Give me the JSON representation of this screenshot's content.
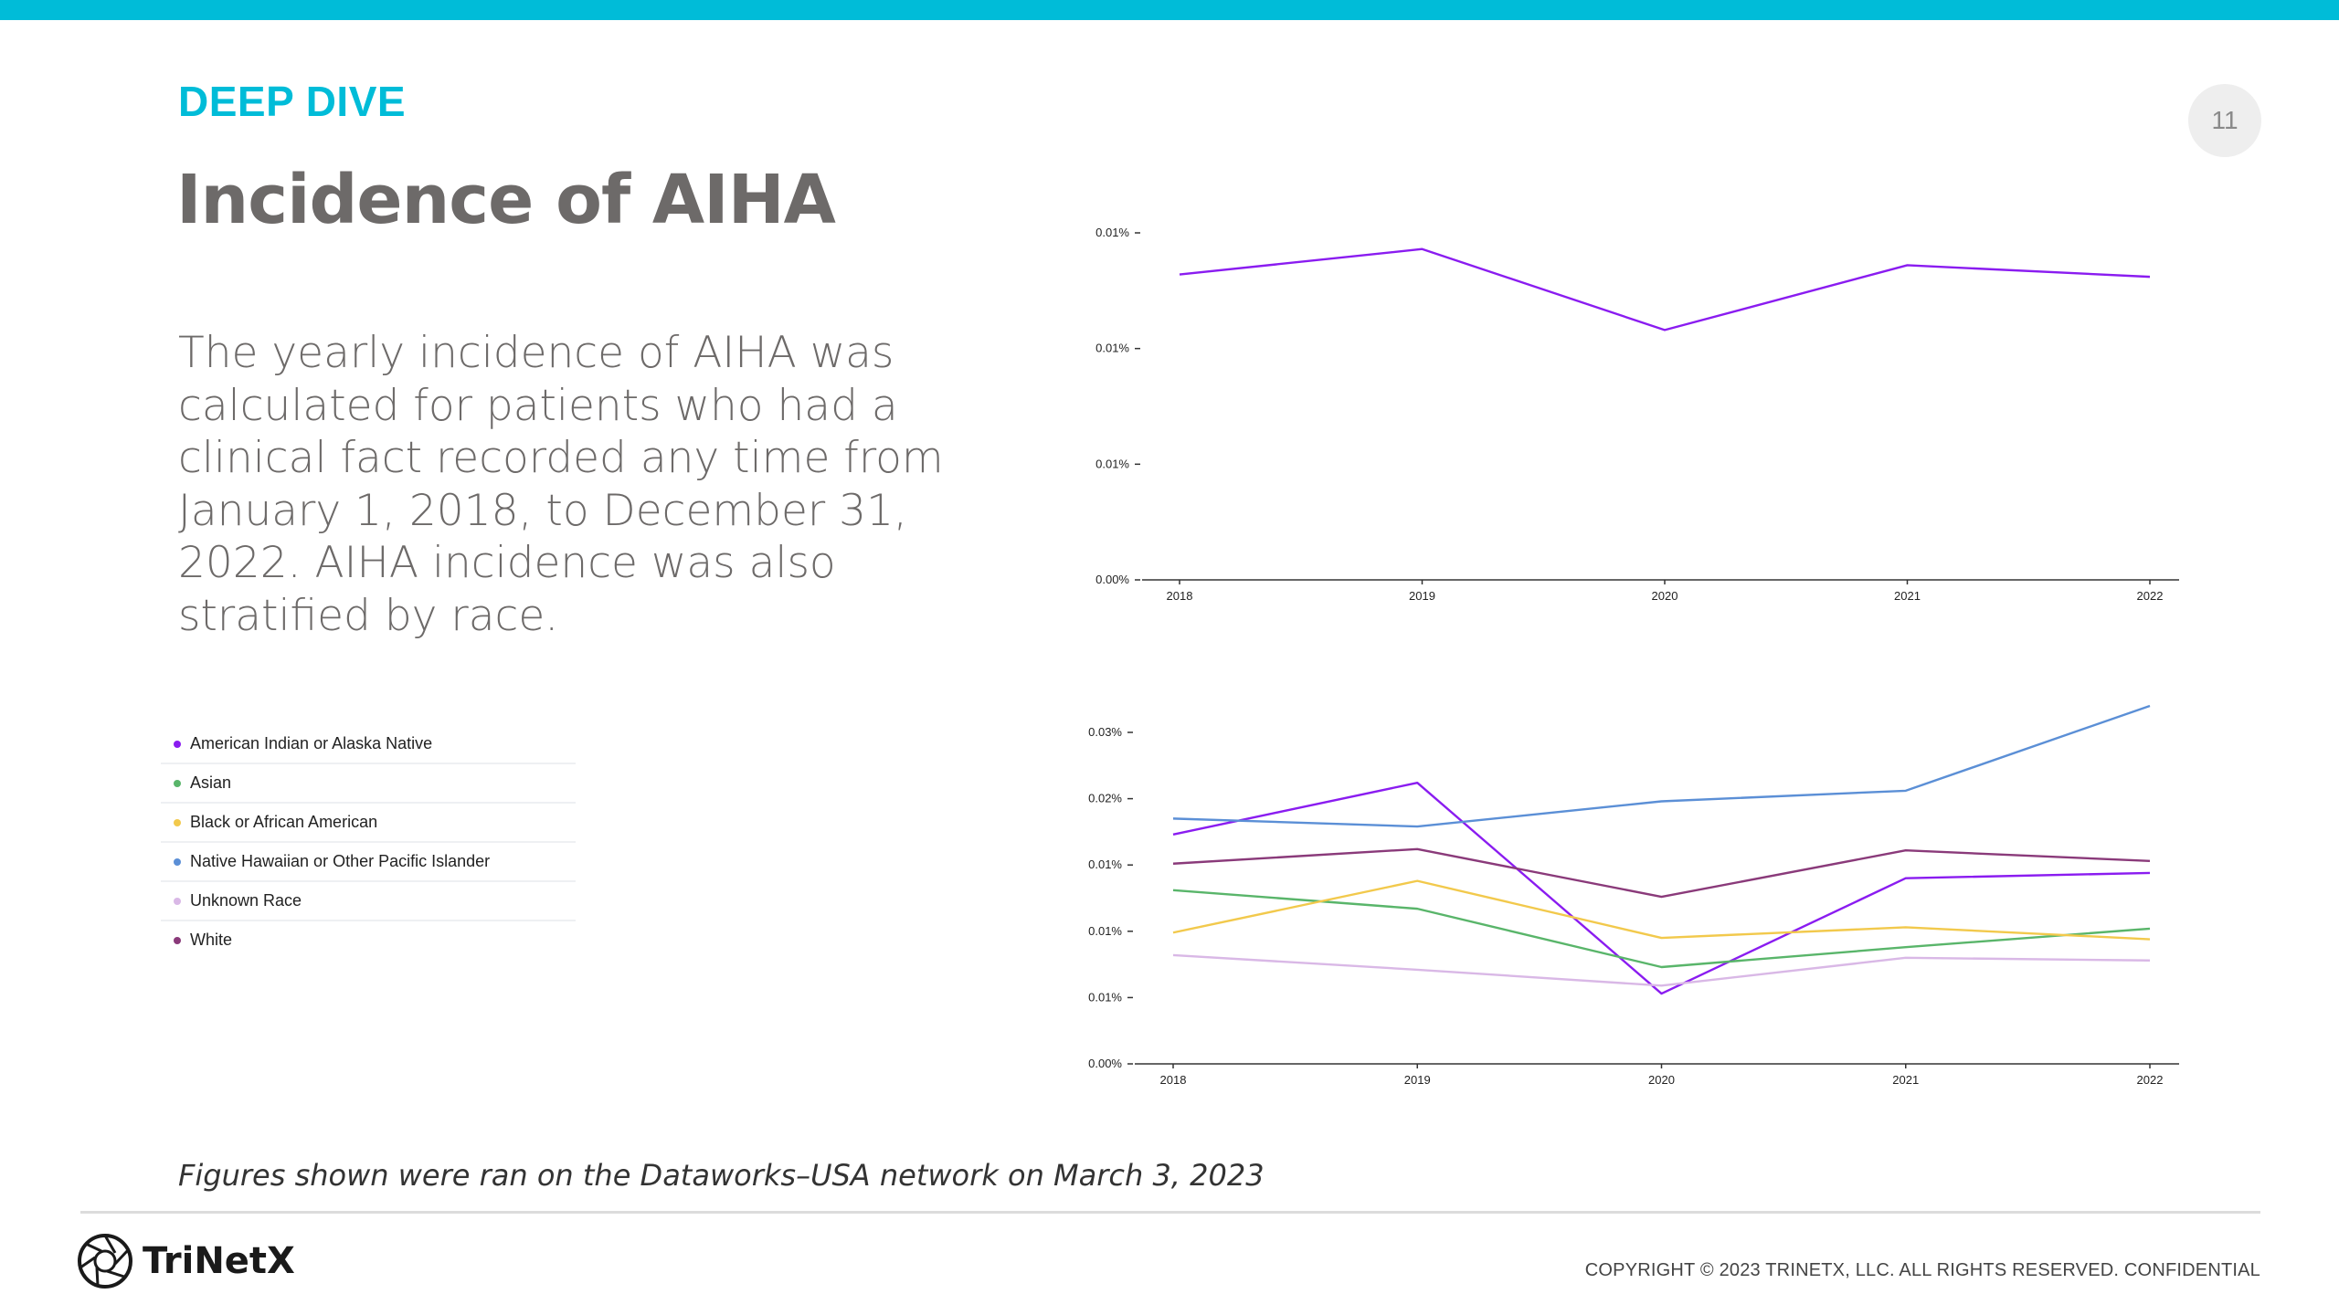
{
  "header": {
    "section_label": "DEEP DIVE",
    "title": "Incidence of AIHA",
    "page_number": "11"
  },
  "body_text": "The yearly incidence of AIHA was calculated for patients who had a clinical fact recorded any time from January 1, 2018, to December 31, 2022. AIHA incidence was also stratified by race.",
  "legend": [
    {
      "label": "American Indian or Alaska Native",
      "color": "#8a1cf0"
    },
    {
      "label": "Asian",
      "color": "#59b56a"
    },
    {
      "label": "Black or African American",
      "color": "#f2c94c"
    },
    {
      "label": "Native Hawaiian or Other Pacific Islander",
      "color": "#5b8fd6"
    },
    {
      "label": "Unknown Race",
      "color": "#d9b8e6"
    },
    {
      "label": "White",
      "color": "#8a3a7a"
    }
  ],
  "footnote": "Figures shown were ran on the Dataworks–USA network on March 3, 2023",
  "footer": {
    "logo_text": "TriNetX",
    "copyright": "COPYRIGHT © 2023 TRINETX, LLC. ALL RIGHTS RESERVED. CONFIDENTIAL"
  },
  "chart_data": [
    {
      "type": "line",
      "x": [
        "2018",
        "2019",
        "2020",
        "2021",
        "2022"
      ],
      "y_tick_labels": [
        "0.00%",
        "0.01%",
        "0.01%",
        "0.01%"
      ],
      "ylim": [
        0,
        0.015
      ],
      "grid": false,
      "series": [
        {
          "color": "#8a1cf0",
          "values": [
            0.0132,
            0.0143,
            0.0108,
            0.0136,
            0.0131
          ]
        }
      ]
    },
    {
      "type": "line",
      "x": [
        "2018",
        "2019",
        "2020",
        "2021",
        "2022"
      ],
      "y_tick_labels": [
        "0.00%",
        "0.01%",
        "0.01%",
        "0.01%",
        "0.02%",
        "0.03%"
      ],
      "ylim": [
        0,
        0.025
      ],
      "grid": false,
      "series": [
        {
          "name": "American Indian or Alaska Native",
          "color": "#8a1cf0",
          "values": [
            0.0173,
            0.0212,
            0.0053,
            0.014,
            0.0144
          ]
        },
        {
          "name": "Asian",
          "color": "#59b56a",
          "values": [
            0.0131,
            0.0117,
            0.0073,
            0.0088,
            0.0102
          ]
        },
        {
          "name": "Black or African American",
          "color": "#f2c94c",
          "values": [
            0.0099,
            0.0138,
            0.0095,
            0.0103,
            0.0094
          ]
        },
        {
          "name": "Native Hawaiian or Other Pacific Islander",
          "color": "#5b8fd6",
          "values": [
            0.0185,
            0.0179,
            0.0198,
            0.0206,
            0.027
          ]
        },
        {
          "name": "Unknown Race",
          "color": "#d9b8e6",
          "values": [
            0.0082,
            0.0071,
            0.0059,
            0.008,
            0.0078
          ]
        },
        {
          "name": "White",
          "color": "#8a3a7a",
          "values": [
            0.0151,
            0.0162,
            0.0126,
            0.0161,
            0.0153
          ]
        }
      ]
    }
  ]
}
